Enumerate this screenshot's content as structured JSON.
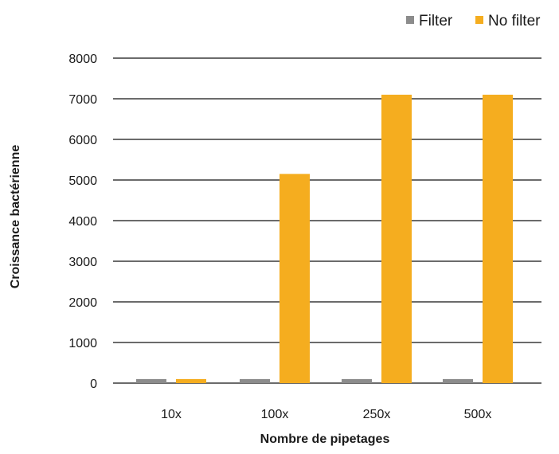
{
  "chart_data": {
    "type": "bar",
    "categories": [
      "10x",
      "100x",
      "250x",
      "500x"
    ],
    "series": [
      {
        "name": "Filter",
        "values": [
          100,
          100,
          100,
          100
        ],
        "color": "#8c8c8c"
      },
      {
        "name": "No filter",
        "values": [
          100,
          5150,
          7100,
          7100
        ],
        "color": "#f5ad1f"
      }
    ],
    "xlabel": "Nombre de pipetages",
    "ylabel": "Croissance bactérienne",
    "ylim": [
      0,
      8000
    ],
    "yticks": [
      0,
      1000,
      2000,
      3000,
      4000,
      5000,
      6000,
      7000,
      8000
    ],
    "grid": true,
    "legend_position": "top-right"
  }
}
